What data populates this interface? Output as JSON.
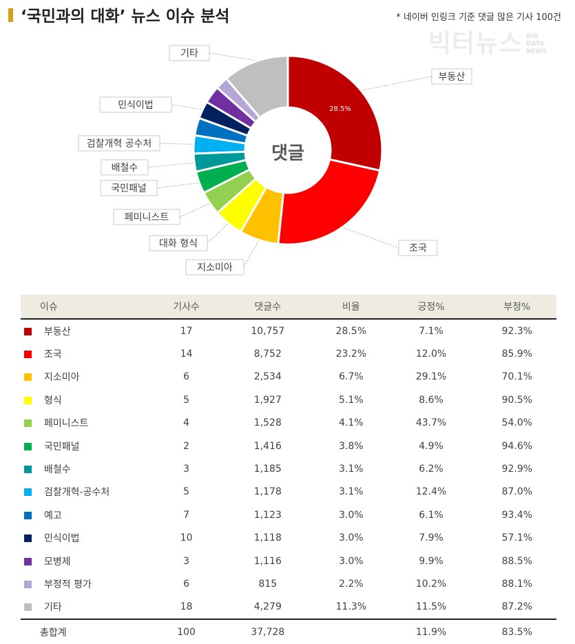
{
  "header": {
    "title": "‘국민과의 대화’ 뉴스 이슈 분석",
    "note": "* 네이버 인링크 기준 댓글 많은 기사 100건"
  },
  "logo": {
    "main": "빅터뉴스",
    "side": [
      "BIG",
      "DATA",
      "NEWS"
    ]
  },
  "chart_data": {
    "type": "pie",
    "center_label": "댓글",
    "start": "12 o'clock, clockwise",
    "slice_label_shown": "28.5%",
    "categories": [
      "부동산",
      "조국",
      "지소미아",
      "형식",
      "페미니스트",
      "국민패널",
      "배철수",
      "검찰개혁-공수처",
      "예고",
      "민식이법",
      "모병제",
      "부정적 평가",
      "기타"
    ],
    "callout_labels": [
      "부동산",
      "조국",
      "지소미아",
      "대화 형식",
      "페미니스트",
      "국민패널",
      "배철수",
      "검찰개혁 공수처",
      "민식이법",
      "기타"
    ],
    "values": [
      28.5,
      23.2,
      6.7,
      5.1,
      4.1,
      3.8,
      3.1,
      3.1,
      3.0,
      3.0,
      3.0,
      2.2,
      11.3
    ],
    "colors": [
      "#c00000",
      "#ff0000",
      "#ffc000",
      "#ffff00",
      "#92d050",
      "#00b050",
      "#009999",
      "#00b0f0",
      "#0070c0",
      "#002060",
      "#7030a0",
      "#b4a7d6",
      "#bfbfbf"
    ]
  },
  "table": {
    "headers": [
      "이슈",
      "기사수",
      "댓글수",
      "비율",
      "긍정%",
      "부정%"
    ],
    "rows": [
      {
        "issue": "부동산",
        "articles": "17",
        "comments": "10,757",
        "ratio": "28.5%",
        "pos": "7.1%",
        "neg": "92.3%"
      },
      {
        "issue": "조국",
        "articles": "14",
        "comments": "8,752",
        "ratio": "23.2%",
        "pos": "12.0%",
        "neg": "85.9%"
      },
      {
        "issue": "지소미아",
        "articles": "6",
        "comments": "2,534",
        "ratio": "6.7%",
        "pos": "29.1%",
        "neg": "70.1%"
      },
      {
        "issue": "형식",
        "articles": "5",
        "comments": "1,927",
        "ratio": "5.1%",
        "pos": "8.6%",
        "neg": "90.5%"
      },
      {
        "issue": "페미니스트",
        "articles": "4",
        "comments": "1,528",
        "ratio": "4.1%",
        "pos": "43.7%",
        "neg": "54.0%"
      },
      {
        "issue": "국민패널",
        "articles": "2",
        "comments": "1,416",
        "ratio": "3.8%",
        "pos": "4.9%",
        "neg": "94.6%"
      },
      {
        "issue": "배철수",
        "articles": "3",
        "comments": "1,185",
        "ratio": "3.1%",
        "pos": "6.2%",
        "neg": "92.9%"
      },
      {
        "issue": "검찰개혁-공수처",
        "articles": "5",
        "comments": "1,178",
        "ratio": "3.1%",
        "pos": "12.4%",
        "neg": "87.0%"
      },
      {
        "issue": "예고",
        "articles": "7",
        "comments": "1,123",
        "ratio": "3.0%",
        "pos": "6.1%",
        "neg": "93.4%"
      },
      {
        "issue": "민식이법",
        "articles": "10",
        "comments": "1,118",
        "ratio": "3.0%",
        "pos": "7.9%",
        "neg": "57.1%"
      },
      {
        "issue": "모병제",
        "articles": "3",
        "comments": "1,116",
        "ratio": "3.0%",
        "pos": "9.9%",
        "neg": "88.5%"
      },
      {
        "issue": "부정적 평가",
        "articles": "6",
        "comments": "815",
        "ratio": "2.2%",
        "pos": "10.2%",
        "neg": "88.1%"
      },
      {
        "issue": "기타",
        "articles": "18",
        "comments": "4,279",
        "ratio": "11.3%",
        "pos": "11.5%",
        "neg": "87.2%"
      }
    ],
    "total": {
      "issue": "총합계",
      "articles": "100",
      "comments": "37,728",
      "ratio": "",
      "pos": "11.9%",
      "neg": "83.5%"
    }
  }
}
